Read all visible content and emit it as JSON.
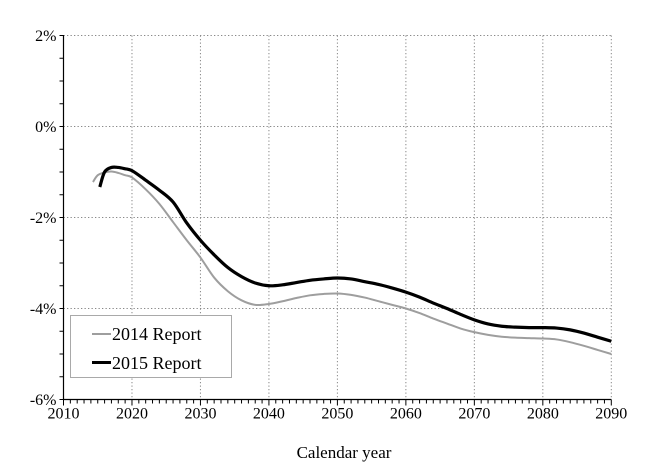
{
  "chart_data": {
    "type": "line",
    "title": "",
    "xlabel": "Calendar year",
    "ylabel": "",
    "xlim": [
      2010,
      2090
    ],
    "ylim": [
      -6,
      2
    ],
    "grid": "dotted",
    "legend_position": "inside-bottom-left",
    "x_ticks": {
      "values": [
        2010,
        2020,
        2030,
        2040,
        2050,
        2060,
        2070,
        2080,
        2090
      ],
      "labels": [
        "2010",
        "2020",
        "2030",
        "2040",
        "2050",
        "2060",
        "2070",
        "2080",
        "2090"
      ],
      "minor_step": 1
    },
    "y_ticks": {
      "values": [
        2,
        0,
        -2,
        -4,
        -6
      ],
      "labels": [
        "2%",
        "0%",
        "-2%",
        "-4%",
        "-6%"
      ],
      "minor_step": 0.5
    },
    "x_gridlines": [
      2020,
      2030,
      2040,
      2050,
      2060,
      2070,
      2080,
      2090
    ],
    "y_gridlines": [
      2,
      0,
      -2,
      -4
    ],
    "colors": {
      "axis": "#000000",
      "grid": "#888888",
      "legend_border": "#a9a9a9",
      "background": "#ffffff",
      "text": "#000000",
      "series_2014": "#9e9e9e",
      "series_2015": "#000000"
    },
    "series": [
      {
        "name": "2014 Report",
        "color": "#9e9e9e",
        "stroke_width": 2,
        "points": [
          [
            2014.3,
            -1.22
          ],
          [
            2015,
            -1.07
          ],
          [
            2016,
            -1.01
          ],
          [
            2017,
            -0.99
          ],
          [
            2018,
            -1.02
          ],
          [
            2019,
            -1.07
          ],
          [
            2020,
            -1.12
          ],
          [
            2022,
            -1.38
          ],
          [
            2024,
            -1.7
          ],
          [
            2026,
            -2.1
          ],
          [
            2028,
            -2.5
          ],
          [
            2030,
            -2.88
          ],
          [
            2032,
            -3.32
          ],
          [
            2034,
            -3.62
          ],
          [
            2036,
            -3.82
          ],
          [
            2038,
            -3.92
          ],
          [
            2040,
            -3.9
          ],
          [
            2042,
            -3.84
          ],
          [
            2044,
            -3.77
          ],
          [
            2046,
            -3.71
          ],
          [
            2048,
            -3.68
          ],
          [
            2050,
            -3.67
          ],
          [
            2052,
            -3.7
          ],
          [
            2054,
            -3.76
          ],
          [
            2056,
            -3.84
          ],
          [
            2058,
            -3.92
          ],
          [
            2060,
            -4.0
          ],
          [
            2062,
            -4.1
          ],
          [
            2064,
            -4.22
          ],
          [
            2066,
            -4.33
          ],
          [
            2068,
            -4.44
          ],
          [
            2070,
            -4.52
          ],
          [
            2072,
            -4.58
          ],
          [
            2074,
            -4.62
          ],
          [
            2076,
            -4.64
          ],
          [
            2078,
            -4.65
          ],
          [
            2080,
            -4.66
          ],
          [
            2082,
            -4.68
          ],
          [
            2084,
            -4.74
          ],
          [
            2086,
            -4.82
          ],
          [
            2088,
            -4.91
          ],
          [
            2090,
            -5.0
          ]
        ]
      },
      {
        "name": "2015 Report",
        "color": "#000000",
        "stroke_width": 3.2,
        "points": [
          [
            2015.3,
            -1.33
          ],
          [
            2016,
            -1.0
          ],
          [
            2017,
            -0.9
          ],
          [
            2018,
            -0.9
          ],
          [
            2019,
            -0.93
          ],
          [
            2020,
            -0.97
          ],
          [
            2022,
            -1.18
          ],
          [
            2024,
            -1.4
          ],
          [
            2026,
            -1.66
          ],
          [
            2028,
            -2.12
          ],
          [
            2030,
            -2.5
          ],
          [
            2032,
            -2.82
          ],
          [
            2034,
            -3.1
          ],
          [
            2036,
            -3.3
          ],
          [
            2038,
            -3.44
          ],
          [
            2040,
            -3.5
          ],
          [
            2042,
            -3.48
          ],
          [
            2044,
            -3.43
          ],
          [
            2046,
            -3.38
          ],
          [
            2048,
            -3.35
          ],
          [
            2050,
            -3.33
          ],
          [
            2052,
            -3.35
          ],
          [
            2054,
            -3.41
          ],
          [
            2056,
            -3.47
          ],
          [
            2058,
            -3.55
          ],
          [
            2060,
            -3.64
          ],
          [
            2062,
            -3.75
          ],
          [
            2064,
            -3.88
          ],
          [
            2066,
            -4.0
          ],
          [
            2068,
            -4.13
          ],
          [
            2070,
            -4.25
          ],
          [
            2072,
            -4.34
          ],
          [
            2074,
            -4.39
          ],
          [
            2076,
            -4.41
          ],
          [
            2078,
            -4.42
          ],
          [
            2080,
            -4.42
          ],
          [
            2082,
            -4.43
          ],
          [
            2084,
            -4.47
          ],
          [
            2086,
            -4.54
          ],
          [
            2088,
            -4.63
          ],
          [
            2090,
            -4.72
          ]
        ]
      }
    ]
  }
}
